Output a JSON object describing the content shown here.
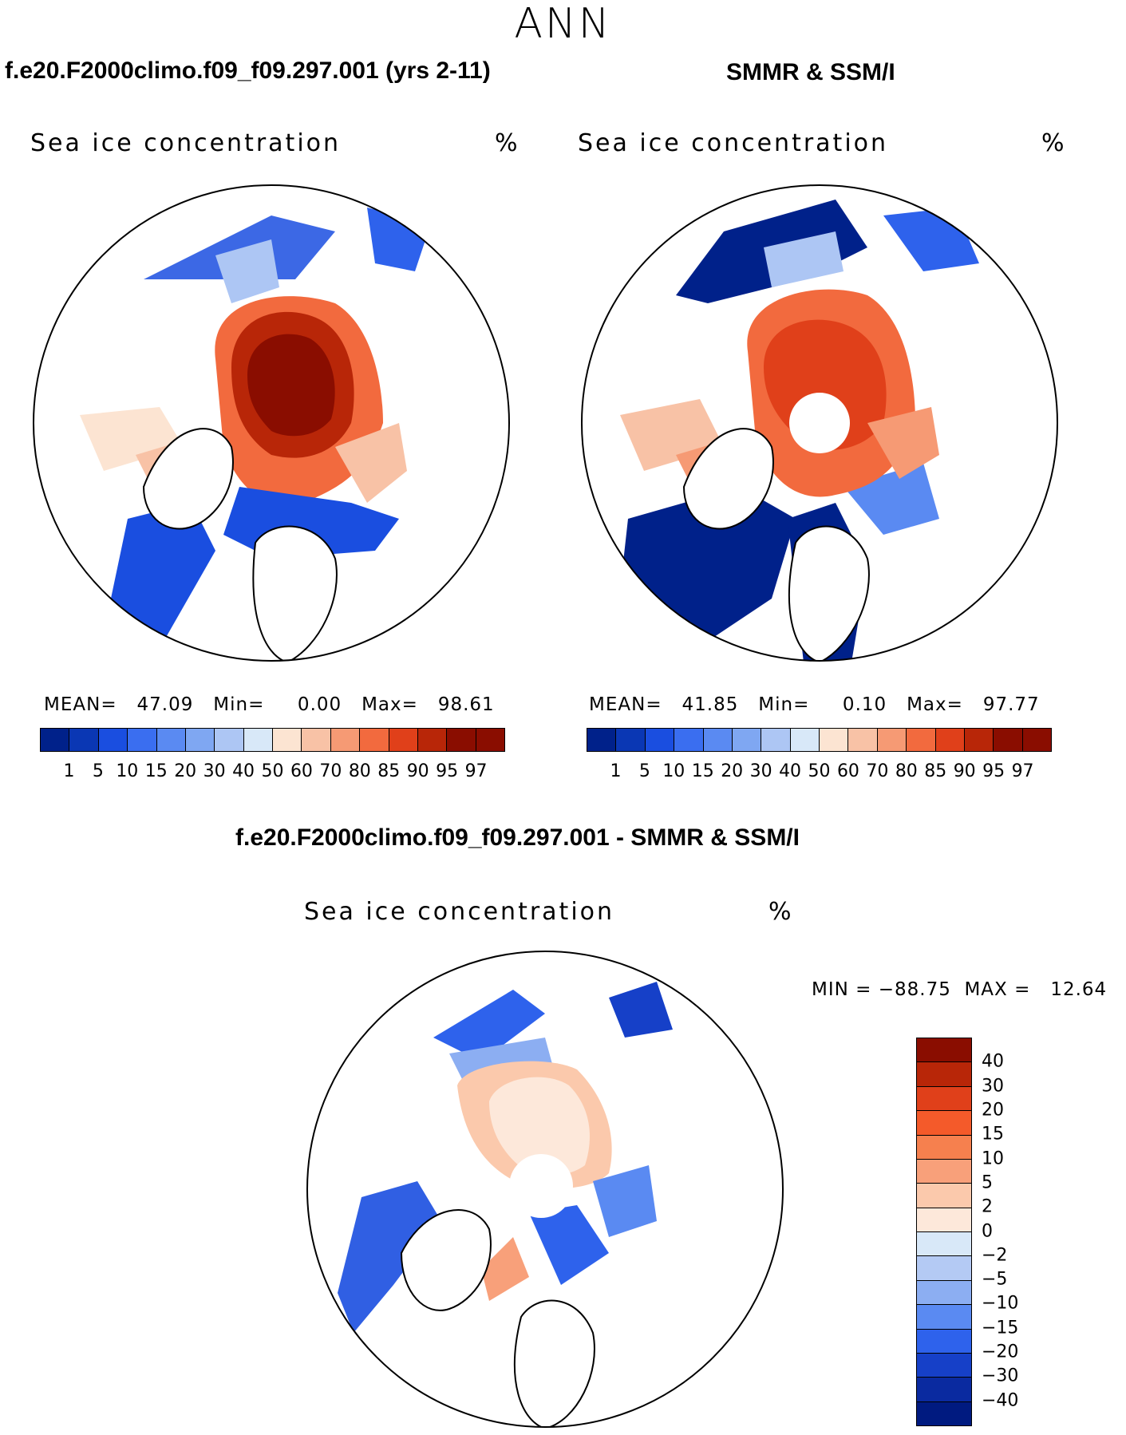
{
  "main_title": "ANN",
  "panels": {
    "model": {
      "title": "f.e20.F2000climo.f09_f09.297.001 (yrs 2-11)",
      "variable": "Sea ice concentration",
      "units": "%",
      "stats": "MEAN=   47.09   Min=     0.00   Max=   98.61"
    },
    "obs": {
      "title": "SMMR & SSM/I",
      "variable": "Sea ice concentration",
      "units": "%",
      "stats": "MEAN=   41.85   Min=     0.10   Max=   97.77"
    },
    "diff": {
      "title": "f.e20.F2000climo.f09_f09.297.001 - SMMR & SSM/I",
      "variable": "Sea ice concentration",
      "units": "%",
      "minmax": "MIN = −88.75  MAX =   12.64"
    }
  },
  "colorbar_levels": [
    "1",
    "5",
    "10",
    "15",
    "20",
    "30",
    "40",
    "50",
    "60",
    "70",
    "80",
    "85",
    "90",
    "95",
    "97"
  ],
  "colorbar_colors": [
    "#00218a",
    "#0a37b4",
    "#1a4ee0",
    "#3a6ef0",
    "#5a8af2",
    "#7fa7f2",
    "#adc6f4",
    "#d8e8f8",
    "#fce4d2",
    "#f8c2a6",
    "#f69a74",
    "#f26a3e",
    "#e0401a",
    "#b82608",
    "#8a0d00"
  ],
  "diff_levels": [
    "40",
    "30",
    "20",
    "15",
    "10",
    "5",
    "2",
    "0",
    "−2",
    "−5",
    "−10",
    "−15",
    "−20",
    "−30",
    "−40"
  ],
  "diff_colors": [
    "#8a0d00",
    "#b82608",
    "#e0401a",
    "#f45a2a",
    "#f6804e",
    "#f8a07a",
    "#fbc9ac",
    "#fde8da",
    "#d8e8f8",
    "#b4caf4",
    "#8caef2",
    "#5a8af2",
    "#2e62ec",
    "#1640c8",
    "#0a2aa0",
    "#001a80"
  ]
}
